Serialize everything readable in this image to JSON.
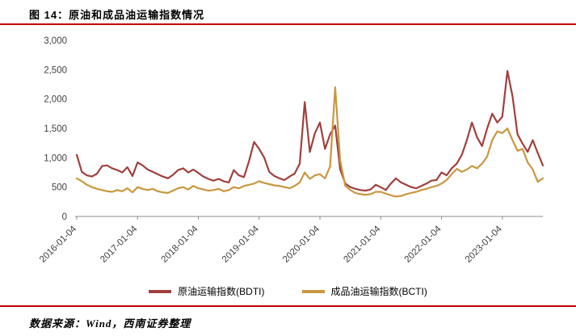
{
  "header": {
    "title": "图 14：原油和成品油运输指数情况"
  },
  "footer": {
    "source": "数据来源：Wind，西南证券整理"
  },
  "colors": {
    "rule": "#c00000",
    "axis": "#8c8c8c"
  },
  "chart_data": {
    "type": "line",
    "title": "原油和成品油运输指数情况",
    "x_unit": "month",
    "x_start": "2016-01",
    "x_tick_labels": [
      "2016-01-04",
      "2017-01-04",
      "2018-01-04",
      "2019-01-04",
      "2020-01-04",
      "2021-01-04",
      "2022-01-04",
      "2023-01-04"
    ],
    "x_tick_indices": [
      0,
      12,
      24,
      36,
      48,
      60,
      72,
      84
    ],
    "ylim": [
      0,
      3000
    ],
    "y_tick_interval": 500,
    "y_tick_labels": [
      "0",
      "500",
      "1,000",
      "1,500",
      "2,000",
      "2,500",
      "3,000"
    ],
    "grid": false,
    "legend_position": "bottom",
    "series": [
      {
        "name": "原油运输指数(BDTI)",
        "color": "#a0403e",
        "values": [
          1050,
          760,
          700,
          680,
          730,
          860,
          870,
          820,
          790,
          750,
          840,
          690,
          920,
          870,
          800,
          760,
          720,
          680,
          650,
          710,
          790,
          820,
          750,
          800,
          740,
          680,
          640,
          610,
          640,
          600,
          580,
          790,
          700,
          670,
          940,
          1270,
          1150,
          1000,
          760,
          690,
          650,
          620,
          680,
          730,
          900,
          1950,
          1100,
          1420,
          1600,
          1150,
          1400,
          1550,
          800,
          560,
          500,
          470,
          450,
          440,
          460,
          540,
          500,
          450,
          560,
          650,
          580,
          540,
          500,
          480,
          520,
          560,
          610,
          620,
          750,
          700,
          820,
          900,
          1050,
          1300,
          1600,
          1350,
          1200,
          1500,
          1750,
          1600,
          1700,
          2480,
          2050,
          1400,
          1240,
          1100,
          1300,
          1080,
          870
        ]
      },
      {
        "name": "成品油运输指数(BCTI)",
        "color": "#c8973f",
        "values": [
          650,
          600,
          540,
          500,
          470,
          450,
          430,
          420,
          450,
          430,
          480,
          410,
          500,
          470,
          450,
          470,
          430,
          410,
          400,
          440,
          480,
          500,
          460,
          520,
          480,
          460,
          440,
          450,
          470,
          430,
          450,
          500,
          480,
          520,
          540,
          560,
          600,
          570,
          550,
          530,
          520,
          500,
          480,
          520,
          580,
          750,
          640,
          700,
          720,
          650,
          850,
          2200,
          950,
          520,
          450,
          400,
          380,
          370,
          380,
          420,
          420,
          390,
          360,
          340,
          350,
          380,
          400,
          420,
          450,
          470,
          500,
          520,
          560,
          620,
          720,
          810,
          760,
          800,
          860,
          820,
          900,
          1020,
          1300,
          1450,
          1420,
          1500,
          1300,
          1120,
          1150,
          920,
          800,
          590,
          650
        ]
      }
    ]
  }
}
